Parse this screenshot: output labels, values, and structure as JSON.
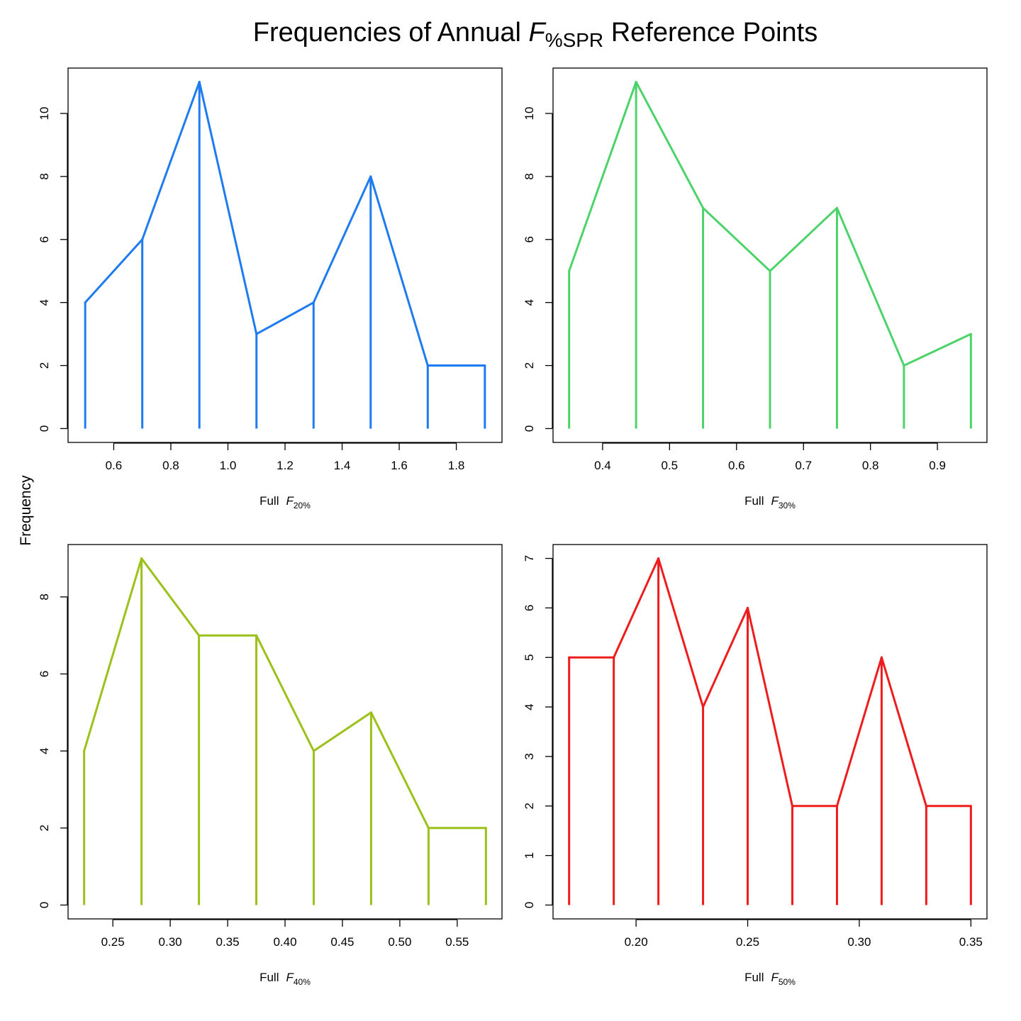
{
  "figure": {
    "title": {
      "prefix": "Frequencies of Annual ",
      "symbol": "F",
      "subscript": "%SPR",
      "suffix": " Reference Points"
    },
    "ylabel": "Frequency"
  },
  "chart_data": [
    {
      "type": "line",
      "style": "frequency polygon with vertical drop lines",
      "xlabel": {
        "prefix": "Full",
        "symbol": "F",
        "subscript": "20%"
      },
      "color": "#1E7BF0",
      "x": [
        0.5,
        0.7,
        0.9,
        1.1,
        1.3,
        1.5,
        1.7,
        1.9
      ],
      "y": [
        4,
        6,
        11,
        3,
        4,
        8,
        2,
        2
      ],
      "xlim": [
        0.44,
        1.96
      ],
      "ylim": [
        -0.44,
        11.44
      ],
      "xticks": [
        0.6,
        0.8,
        1.0,
        1.2,
        1.4,
        1.6,
        1.8
      ],
      "xtick_labels": [
        "0.6",
        "0.8",
        "1.0",
        "1.2",
        "1.4",
        "1.6",
        "1.8"
      ],
      "yticks": [
        0,
        2,
        4,
        6,
        8,
        10
      ],
      "ytick_labels": [
        "0",
        "2",
        "4",
        "6",
        "8",
        "10"
      ],
      "grid": false
    },
    {
      "type": "line",
      "style": "frequency polygon with vertical drop lines",
      "xlabel": {
        "prefix": "Full",
        "symbol": "F",
        "subscript": "30%"
      },
      "color": "#4CD36A",
      "x": [
        0.35,
        0.45,
        0.55,
        0.65,
        0.75,
        0.85,
        0.95
      ],
      "y": [
        5,
        11,
        7,
        5,
        7,
        2,
        3
      ],
      "xlim": [
        0.326,
        0.974
      ],
      "ylim": [
        -0.44,
        11.44
      ],
      "xticks": [
        0.4,
        0.5,
        0.6,
        0.7,
        0.8,
        0.9
      ],
      "xtick_labels": [
        "0.4",
        "0.5",
        "0.6",
        "0.7",
        "0.8",
        "0.9"
      ],
      "yticks": [
        0,
        2,
        4,
        6,
        8,
        10
      ],
      "ytick_labels": [
        "0",
        "2",
        "4",
        "6",
        "8",
        "10"
      ],
      "grid": false
    },
    {
      "type": "line",
      "style": "frequency polygon with vertical drop lines",
      "xlabel": {
        "prefix": "Full",
        "symbol": "F",
        "subscript": "40%"
      },
      "color": "#9BC11A",
      "x": [
        0.225,
        0.275,
        0.325,
        0.375,
        0.425,
        0.475,
        0.525,
        0.575
      ],
      "y": [
        4,
        9,
        7,
        7,
        4,
        5,
        2,
        2
      ],
      "xlim": [
        0.211,
        0.589
      ],
      "ylim": [
        -0.36,
        9.36
      ],
      "xticks": [
        0.25,
        0.3,
        0.35,
        0.4,
        0.45,
        0.5,
        0.55
      ],
      "xtick_labels": [
        "0.25",
        "0.30",
        "0.35",
        "0.40",
        "0.45",
        "0.50",
        "0.55"
      ],
      "yticks": [
        0,
        2,
        4,
        6,
        8
      ],
      "ytick_labels": [
        "0",
        "2",
        "4",
        "6",
        "8"
      ],
      "grid": false
    },
    {
      "type": "line",
      "style": "frequency polygon with vertical drop lines",
      "xlabel": {
        "prefix": "Full",
        "symbol": "F",
        "subscript": "50%"
      },
      "color": "#EE1C1C",
      "x": [
        0.17,
        0.19,
        0.21,
        0.23,
        0.25,
        0.27,
        0.29,
        0.31,
        0.33,
        0.35
      ],
      "y": [
        5,
        5,
        7,
        4,
        6,
        2,
        2,
        5,
        2,
        2
      ],
      "xlim": [
        0.1628,
        0.3572
      ],
      "ylim": [
        -0.28,
        7.28
      ],
      "xticks": [
        0.2,
        0.25,
        0.3,
        0.35
      ],
      "xtick_labels": [
        "0.20",
        "0.25",
        "0.30",
        "0.35"
      ],
      "yticks": [
        0,
        1,
        2,
        3,
        4,
        5,
        6,
        7
      ],
      "ytick_labels": [
        "0",
        "1",
        "2",
        "3",
        "4",
        "5",
        "6",
        "7"
      ],
      "grid": false
    }
  ]
}
